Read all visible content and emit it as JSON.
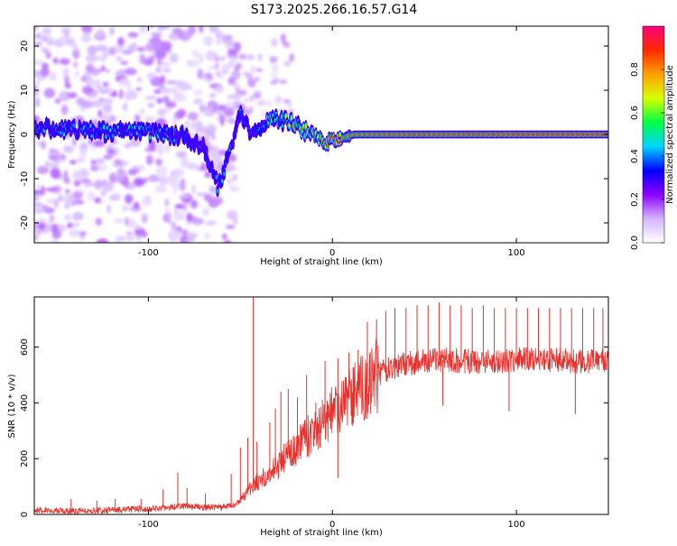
{
  "title": "S173.2025.266.16.57.G14",
  "chart_data": [
    {
      "type": "heatmap",
      "name": "spectrogram",
      "xlabel": "Height of straight line (km)",
      "ylabel": "Frequency (Hz)",
      "xlim": [
        -162,
        150
      ],
      "ylim": [
        -24.5,
        24.5
      ],
      "xticks": [
        -100,
        0,
        100
      ],
      "xtick_labels": [
        "-100",
        "0",
        "100"
      ],
      "yticks": [
        -20,
        -10,
        0,
        10,
        20
      ],
      "ytick_labels": [
        "-20",
        "-10",
        "0",
        "10",
        "20"
      ],
      "ridge": {
        "x": [
          -162,
          -140,
          -120,
          -100,
          -80,
          -70,
          -62,
          -56,
          -50,
          -44,
          -40,
          -36,
          -32,
          -28,
          -24,
          -20,
          -16,
          -12,
          -8,
          -4,
          0,
          4,
          8,
          12,
          20,
          40,
          60,
          80,
          100,
          120,
          140,
          148
        ],
        "freq": [
          1.5,
          1,
          0.5,
          0.5,
          -0.5,
          -3,
          -12,
          -4,
          5,
          0,
          0.5,
          2.5,
          4,
          3,
          3,
          2.5,
          1,
          0,
          -1,
          -1.5,
          -1.5,
          -1,
          -0.5,
          0,
          0,
          0,
          0,
          0,
          0,
          0,
          0,
          0
        ],
        "amplitude": [
          0.35,
          0.4,
          0.4,
          0.45,
          0.3,
          0.25,
          0.35,
          0.35,
          0.35,
          0.3,
          0.35,
          0.45,
          0.5,
          0.5,
          0.55,
          0.55,
          0.55,
          0.55,
          0.6,
          0.65,
          0.7,
          0.75,
          0.8,
          0.8,
          0.82,
          0.85,
          0.85,
          0.85,
          0.87,
          0.87,
          0.88,
          0.88
        ]
      }
    },
    {
      "type": "line",
      "name": "snr",
      "xlabel": "Height of straight line (km)",
      "ylabel": "SNR (10 * v/v)",
      "xlim": [
        -162,
        150
      ],
      "ylim": [
        0,
        780
      ],
      "xticks": [
        -100,
        0,
        100
      ],
      "xtick_labels": [
        "-100",
        "0",
        "100"
      ],
      "yticks": [
        0,
        200,
        400,
        600
      ],
      "ytick_labels": [
        "0",
        "200",
        "400",
        "600"
      ],
      "color": "#e8302c",
      "trend": {
        "x": [
          -162,
          -140,
          -120,
          -100,
          -80,
          -70,
          -60,
          -55,
          -50,
          -45,
          -40,
          -35,
          -30,
          -25,
          -20,
          -15,
          -10,
          -5,
          0,
          5,
          10,
          15,
          20,
          25,
          30,
          40,
          50,
          60,
          80,
          100,
          120,
          140,
          150
        ],
        "y": [
          15,
          10,
          15,
          20,
          30,
          25,
          25,
          30,
          50,
          90,
          120,
          140,
          170,
          210,
          240,
          270,
          300,
          330,
          360,
          390,
          420,
          450,
          480,
          500,
          520,
          540,
          550,
          555,
          545,
          555,
          555,
          545,
          550
        ]
      },
      "spikes": [
        {
          "x": -142,
          "y": 55
        },
        {
          "x": -128,
          "y": 50
        },
        {
          "x": -118,
          "y": 55
        },
        {
          "x": -104,
          "y": 55
        },
        {
          "x": -92,
          "y": 90
        },
        {
          "x": -84,
          "y": 150
        },
        {
          "x": -79,
          "y": 95
        },
        {
          "x": -69,
          "y": 75
        },
        {
          "x": -55,
          "y": 145
        },
        {
          "x": -50,
          "y": 240
        },
        {
          "x": -46,
          "y": 275
        },
        {
          "x": -43,
          "y": 780
        },
        {
          "x": -41,
          "y": 260
        },
        {
          "x": -34,
          "y": 330
        },
        {
          "x": -31,
          "y": 380
        },
        {
          "x": -28,
          "y": 440
        },
        {
          "x": -24,
          "y": 450
        },
        {
          "x": -19,
          "y": 420
        },
        {
          "x": -14,
          "y": 500
        },
        {
          "x": -9,
          "y": 400
        },
        {
          "x": -4,
          "y": 550
        },
        {
          "x": 3,
          "y": 560
        },
        {
          "x": 9,
          "y": 580
        },
        {
          "x": 14,
          "y": 590
        },
        {
          "x": 19,
          "y": 690
        },
        {
          "x": 24,
          "y": 700
        },
        {
          "x": 29,
          "y": 730
        },
        {
          "x": 34,
          "y": 740
        },
        {
          "x": 40,
          "y": 740
        },
        {
          "x": 46,
          "y": 750
        },
        {
          "x": 52,
          "y": 750
        },
        {
          "x": 58,
          "y": 760
        },
        {
          "x": 64,
          "y": 750
        },
        {
          "x": 70,
          "y": 750
        },
        {
          "x": 76,
          "y": 740
        },
        {
          "x": 82,
          "y": 750
        },
        {
          "x": 88,
          "y": 740
        },
        {
          "x": 94,
          "y": 740
        },
        {
          "x": 100,
          "y": 740
        },
        {
          "x": 106,
          "y": 740
        },
        {
          "x": 112,
          "y": 740
        },
        {
          "x": 118,
          "y": 740
        },
        {
          "x": 124,
          "y": 740
        },
        {
          "x": 130,
          "y": 740
        },
        {
          "x": 136,
          "y": 740
        },
        {
          "x": 142,
          "y": 740
        },
        {
          "x": 147,
          "y": 740
        }
      ],
      "dips": [
        {
          "x": 3,
          "y": 130
        },
        {
          "x": 60,
          "y": 390
        },
        {
          "x": 96,
          "y": 370
        },
        {
          "x": 132,
          "y": 360
        }
      ]
    }
  ],
  "colorbar": {
    "label": "Normalized spectral amplitude",
    "range": [
      0,
      1
    ],
    "ticks": [
      0.0,
      0.2,
      0.4,
      0.6,
      0.8
    ],
    "tick_labels": [
      "0.0",
      "0.2",
      "0.4",
      "0.6",
      "0.8"
    ],
    "colors": [
      "#ffffff",
      "#d4b6ff",
      "#8c00ff",
      "#0000ff",
      "#00d5ff",
      "#00ff44",
      "#d8ff00",
      "#ffa000",
      "#ff2a00",
      "#ff0080"
    ]
  }
}
